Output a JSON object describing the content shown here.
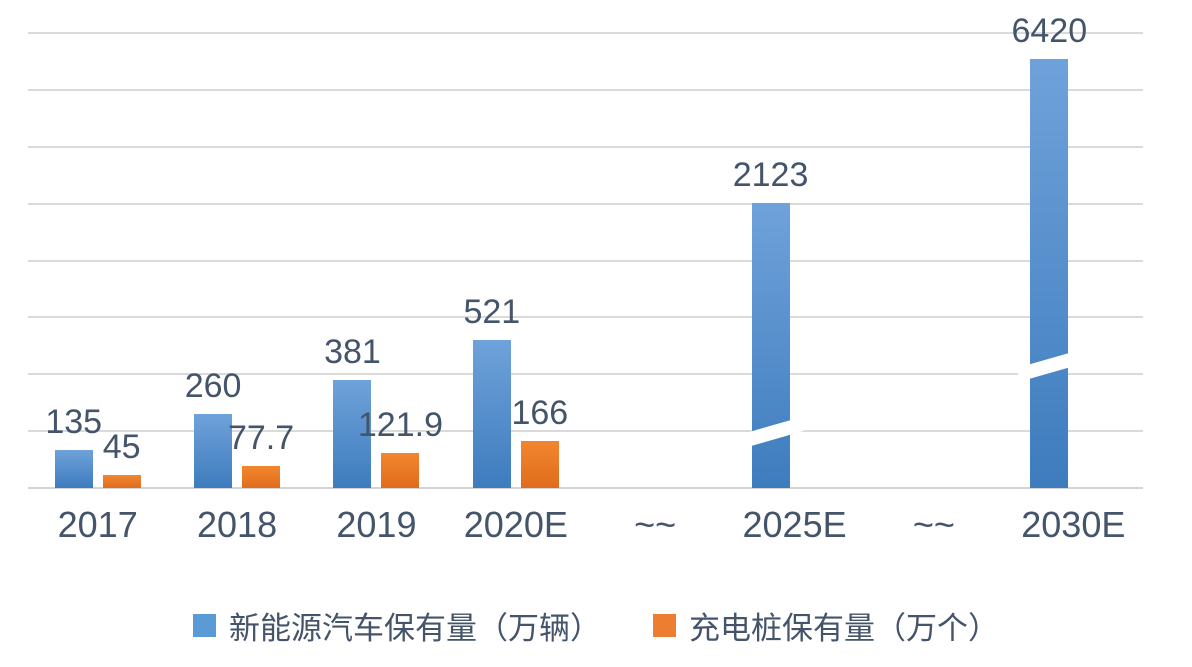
{
  "chart_data": {
    "type": "bar",
    "title": "",
    "categories": [
      "2017",
      "2018",
      "2019",
      "2020E",
      "~~",
      "2025E",
      "~~",
      "2030E"
    ],
    "series": [
      {
        "name": "新能源汽车保有量（万辆）",
        "values": [
          135,
          260,
          381,
          521,
          null,
          2123,
          null,
          6420
        ],
        "color_top": "#6fa2da",
        "color_bottom": "#3e7cbe",
        "legend_color": "#5b9bd5"
      },
      {
        "name": "充电桩保有量（万个）",
        "values": [
          45,
          77.7,
          121.9,
          166,
          null,
          null,
          null,
          null
        ],
        "color_top": "#f2872f",
        "color_bottom": "#e06c1c",
        "legend_color": "#ed7d31"
      }
    ],
    "data_labels": {
      "s0": [
        "135",
        "260",
        "381",
        "521",
        null,
        "2123",
        null,
        "6420"
      ],
      "s1": [
        "45",
        "77.7",
        "121.9",
        "166",
        null,
        null,
        null,
        null
      ]
    },
    "axis_breaks": [
      {
        "category": "2025E",
        "plotted_top": 1002,
        "break_center": 195
      },
      {
        "category": "2030E",
        "plotted_top": 1509,
        "break_center": 430
      }
    ],
    "ylim": [
      0,
      1600
    ],
    "y_step": 200,
    "grid": true,
    "legend_position": "bottom",
    "colors": {
      "text": "#44546a",
      "gridline": "#dadada"
    }
  }
}
